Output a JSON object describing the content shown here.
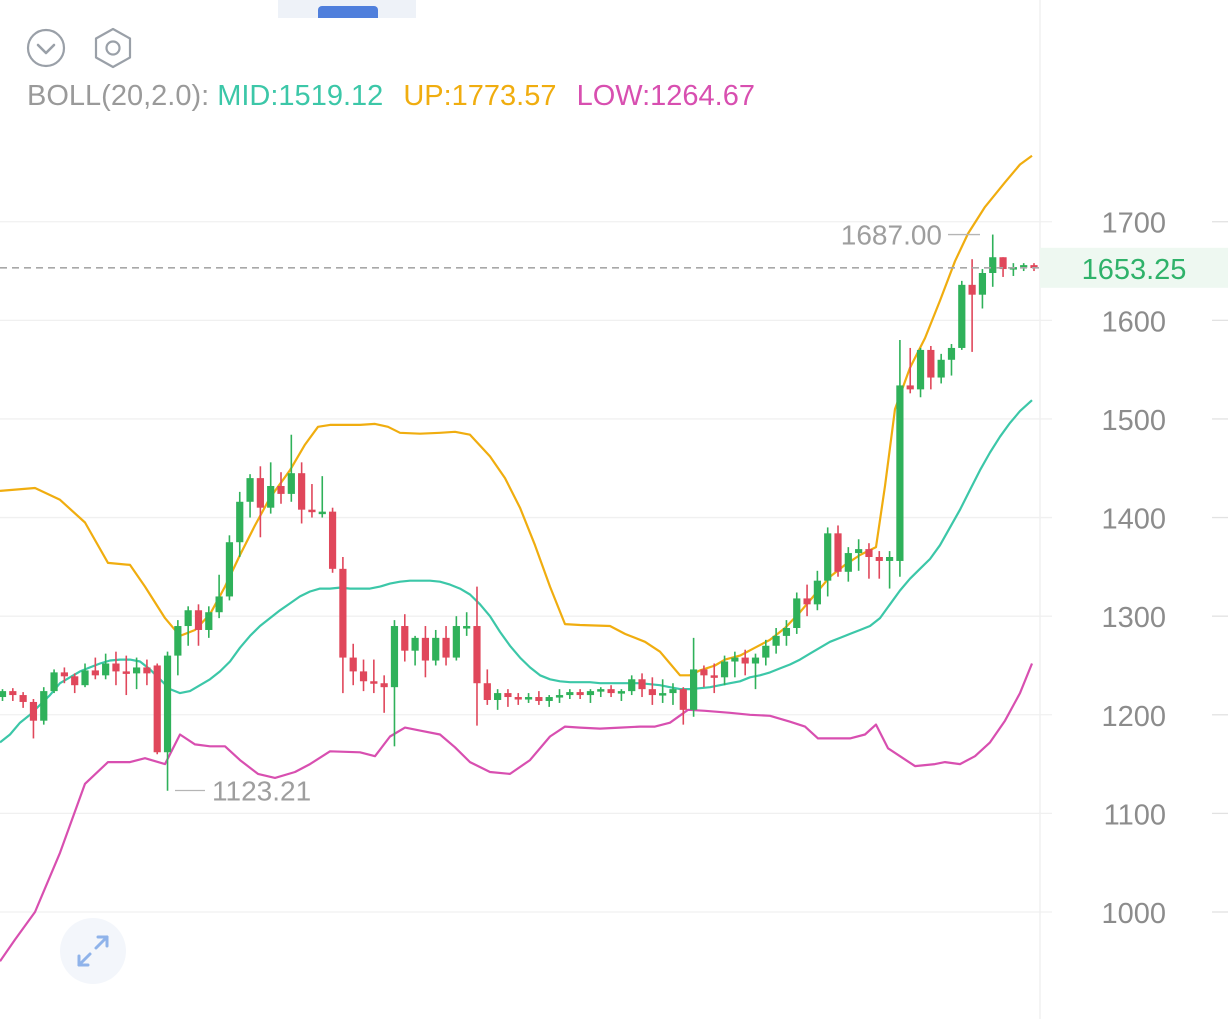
{
  "toolbar": {
    "collapse_icon": "chevron-down-circle-icon",
    "settings_icon": "hexagon-settings-icon"
  },
  "indicator": {
    "name": "BOLL(20,2.0):",
    "mid_label": "MID:1519.12",
    "up_label": "UP:1773.57",
    "low_label": "LOW:1264.67",
    "colors": {
      "name": "#9a9a9a",
      "mid": "#3cc7a8",
      "up": "#f0ad0f",
      "low": "#d84fb0"
    }
  },
  "chart_data": {
    "type": "candlestick",
    "y_axis": {
      "ticks": [
        1000,
        1100,
        1200,
        1300,
        1400,
        1500,
        1600,
        1700
      ],
      "range": [
        960,
        1745
      ],
      "grid": true,
      "position": "right"
    },
    "last_price": {
      "value": 1653.25,
      "label": "1653.25",
      "color": "#2fb26a"
    },
    "max_annotation": {
      "value": 1687.0,
      "label": "1687.00"
    },
    "min_annotation": {
      "value": 1123.21,
      "label": "1123.21"
    },
    "colors": {
      "up": "#2fb15a",
      "down": "#e0475b"
    },
    "candles": [
      [
        1218,
        1226,
        1214,
        1224
      ],
      [
        1224,
        1227,
        1214,
        1220
      ],
      [
        1220,
        1223,
        1207,
        1213
      ],
      [
        1213,
        1216,
        1176,
        1194
      ],
      [
        1194,
        1228,
        1190,
        1224
      ],
      [
        1224,
        1246,
        1222,
        1243
      ],
      [
        1243,
        1248,
        1232,
        1239
      ],
      [
        1239,
        1242,
        1222,
        1230
      ],
      [
        1230,
        1252,
        1228,
        1245
      ],
      [
        1245,
        1258,
        1236,
        1240
      ],
      [
        1240,
        1262,
        1236,
        1252
      ],
      [
        1252,
        1264,
        1230,
        1244
      ],
      [
        1244,
        1260,
        1220,
        1242
      ],
      [
        1242,
        1258,
        1226,
        1248
      ],
      [
        1248,
        1256,
        1230,
        1242
      ],
      [
        1250,
        1252,
        1160,
        1162
      ],
      [
        1162,
        1264,
        1123,
        1260
      ],
      [
        1260,
        1296,
        1240,
        1290
      ],
      [
        1290,
        1310,
        1270,
        1306
      ],
      [
        1306,
        1312,
        1270,
        1286
      ],
      [
        1286,
        1310,
        1278,
        1304
      ],
      [
        1304,
        1342,
        1298,
        1320
      ],
      [
        1320,
        1382,
        1316,
        1375
      ],
      [
        1375,
        1426,
        1360,
        1416
      ],
      [
        1416,
        1444,
        1400,
        1440
      ],
      [
        1440,
        1452,
        1380,
        1410
      ],
      [
        1410,
        1456,
        1404,
        1432
      ],
      [
        1432,
        1446,
        1414,
        1424
      ],
      [
        1424,
        1484,
        1416,
        1445
      ],
      [
        1445,
        1456,
        1394,
        1408
      ],
      [
        1408,
        1434,
        1400,
        1406
      ],
      [
        1406,
        1442,
        1400,
        1406
      ],
      [
        1406,
        1410,
        1344,
        1348
      ],
      [
        1348,
        1360,
        1222,
        1258
      ],
      [
        1258,
        1272,
        1230,
        1244
      ],
      [
        1244,
        1256,
        1224,
        1234
      ],
      [
        1234,
        1256,
        1222,
        1232
      ],
      [
        1232,
        1240,
        1202,
        1228
      ],
      [
        1228,
        1296,
        1168,
        1290
      ],
      [
        1290,
        1302,
        1254,
        1265
      ],
      [
        1265,
        1280,
        1250,
        1278
      ],
      [
        1278,
        1290,
        1238,
        1255
      ],
      [
        1255,
        1286,
        1250,
        1278
      ],
      [
        1278,
        1290,
        1250,
        1258
      ],
      [
        1258,
        1300,
        1255,
        1290
      ],
      [
        1290,
        1304,
        1280,
        1290
      ],
      [
        1290,
        1330,
        1189,
        1232
      ],
      [
        1232,
        1246,
        1210,
        1215
      ],
      [
        1215,
        1226,
        1205,
        1222
      ],
      [
        1222,
        1226,
        1208,
        1218
      ],
      [
        1218,
        1222,
        1210,
        1216
      ],
      [
        1216,
        1222,
        1212,
        1218
      ],
      [
        1218,
        1224,
        1210,
        1214
      ],
      [
        1214,
        1220,
        1208,
        1218
      ],
      [
        1218,
        1226,
        1212,
        1220
      ],
      [
        1220,
        1226,
        1216,
        1223
      ],
      [
        1223,
        1226,
        1216,
        1220
      ],
      [
        1220,
        1226,
        1212,
        1224
      ],
      [
        1224,
        1228,
        1218,
        1226
      ],
      [
        1226,
        1230,
        1218,
        1222
      ],
      [
        1222,
        1226,
        1214,
        1224
      ],
      [
        1224,
        1240,
        1220,
        1236
      ],
      [
        1236,
        1242,
        1218,
        1226
      ],
      [
        1226,
        1238,
        1210,
        1220
      ],
      [
        1220,
        1236,
        1212,
        1222
      ],
      [
        1222,
        1232,
        1210,
        1226
      ],
      [
        1226,
        1228,
        1190,
        1205
      ],
      [
        1205,
        1278,
        1198,
        1246
      ],
      [
        1246,
        1250,
        1228,
        1240
      ],
      [
        1240,
        1252,
        1222,
        1238
      ],
      [
        1238,
        1260,
        1230,
        1254
      ],
      [
        1254,
        1264,
        1238,
        1258
      ],
      [
        1258,
        1266,
        1240,
        1252
      ],
      [
        1252,
        1262,
        1226,
        1258
      ],
      [
        1258,
        1276,
        1250,
        1270
      ],
      [
        1270,
        1288,
        1262,
        1280
      ],
      [
        1280,
        1296,
        1270,
        1288
      ],
      [
        1288,
        1324,
        1282,
        1318
      ],
      [
        1318,
        1332,
        1300,
        1312
      ],
      [
        1312,
        1346,
        1306,
        1336
      ],
      [
        1336,
        1390,
        1320,
        1384
      ],
      [
        1384,
        1392,
        1340,
        1345
      ],
      [
        1345,
        1370,
        1335,
        1364
      ],
      [
        1364,
        1378,
        1346,
        1368
      ],
      [
        1368,
        1374,
        1338,
        1360
      ],
      [
        1360,
        1366,
        1338,
        1356
      ],
      [
        1356,
        1366,
        1328,
        1360
      ],
      [
        1356,
        1580,
        1340,
        1534
      ],
      [
        1534,
        1572,
        1526,
        1530
      ],
      [
        1530,
        1572,
        1522,
        1570
      ],
      [
        1570,
        1574,
        1530,
        1542
      ],
      [
        1542,
        1566,
        1536,
        1560
      ],
      [
        1560,
        1576,
        1544,
        1572
      ],
      [
        1572,
        1640,
        1570,
        1636
      ],
      [
        1636,
        1662,
        1568,
        1626
      ],
      [
        1626,
        1652,
        1612,
        1648
      ],
      [
        1648,
        1687,
        1634,
        1664
      ],
      [
        1664,
        1664,
        1644,
        1652
      ],
      [
        1652,
        1658,
        1645,
        1654
      ],
      [
        1654,
        1658,
        1650,
        1656
      ],
      [
        1656,
        1658,
        1650,
        1653
      ]
    ],
    "boll_mid": [
      [
        0,
        1172
      ],
      [
        10,
        1180
      ],
      [
        20,
        1192
      ],
      [
        30,
        1200
      ],
      [
        40,
        1210
      ],
      [
        50,
        1220
      ],
      [
        60,
        1232
      ],
      [
        70,
        1238
      ],
      [
        80,
        1244
      ],
      [
        90,
        1248
      ],
      [
        100,
        1252
      ],
      [
        110,
        1255
      ],
      [
        120,
        1256
      ],
      [
        130,
        1256
      ],
      [
        140,
        1254
      ],
      [
        150,
        1246
      ],
      [
        160,
        1236
      ],
      [
        170,
        1226
      ],
      [
        180,
        1222
      ],
      [
        190,
        1224
      ],
      [
        200,
        1230
      ],
      [
        210,
        1236
      ],
      [
        220,
        1244
      ],
      [
        230,
        1254
      ],
      [
        240,
        1268
      ],
      [
        250,
        1280
      ],
      [
        260,
        1290
      ],
      [
        270,
        1298
      ],
      [
        280,
        1306
      ],
      [
        290,
        1313
      ],
      [
        300,
        1320
      ],
      [
        310,
        1325
      ],
      [
        320,
        1328
      ],
      [
        330,
        1328
      ],
      [
        340,
        1329
      ],
      [
        350,
        1328
      ],
      [
        360,
        1328
      ],
      [
        370,
        1328
      ],
      [
        380,
        1330
      ],
      [
        390,
        1333
      ],
      [
        400,
        1335
      ],
      [
        410,
        1336
      ],
      [
        420,
        1336
      ],
      [
        430,
        1336
      ],
      [
        440,
        1335
      ],
      [
        450,
        1332
      ],
      [
        460,
        1328
      ],
      [
        470,
        1322
      ],
      [
        480,
        1312
      ],
      [
        490,
        1300
      ],
      [
        500,
        1284
      ],
      [
        510,
        1270
      ],
      [
        520,
        1258
      ],
      [
        530,
        1248
      ],
      [
        540,
        1240
      ],
      [
        550,
        1236
      ],
      [
        560,
        1234
      ],
      [
        570,
        1233
      ],
      [
        580,
        1233
      ],
      [
        590,
        1233
      ],
      [
        600,
        1232
      ],
      [
        610,
        1232
      ],
      [
        620,
        1232
      ],
      [
        630,
        1232
      ],
      [
        640,
        1232
      ],
      [
        650,
        1231
      ],
      [
        660,
        1230
      ],
      [
        670,
        1228
      ],
      [
        680,
        1226
      ],
      [
        690,
        1226
      ],
      [
        700,
        1227
      ],
      [
        710,
        1228
      ],
      [
        720,
        1230
      ],
      [
        730,
        1232
      ],
      [
        740,
        1234
      ],
      [
        750,
        1238
      ],
      [
        760,
        1240
      ],
      [
        770,
        1243
      ],
      [
        780,
        1247
      ],
      [
        790,
        1251
      ],
      [
        800,
        1256
      ],
      [
        810,
        1262
      ],
      [
        820,
        1268
      ],
      [
        830,
        1274
      ],
      [
        840,
        1278
      ],
      [
        850,
        1282
      ],
      [
        860,
        1286
      ],
      [
        870,
        1290
      ],
      [
        880,
        1298
      ],
      [
        890,
        1312
      ],
      [
        900,
        1326
      ],
      [
        910,
        1338
      ],
      [
        920,
        1348
      ],
      [
        930,
        1358
      ],
      [
        940,
        1372
      ],
      [
        950,
        1390
      ],
      [
        960,
        1408
      ],
      [
        970,
        1428
      ],
      [
        980,
        1448
      ],
      [
        990,
        1466
      ],
      [
        1000,
        1482
      ],
      [
        1010,
        1496
      ],
      [
        1020,
        1508
      ],
      [
        1032,
        1519
      ]
    ],
    "boll_up": [
      [
        0,
        1427
      ],
      [
        35,
        1430
      ],
      [
        60,
        1418
      ],
      [
        85,
        1395
      ],
      [
        108,
        1354
      ],
      [
        130,
        1352
      ],
      [
        145,
        1330
      ],
      [
        165,
        1298
      ],
      [
        180,
        1280
      ],
      [
        195,
        1286
      ],
      [
        210,
        1302
      ],
      [
        225,
        1330
      ],
      [
        240,
        1362
      ],
      [
        255,
        1392
      ],
      [
        270,
        1420
      ],
      [
        290,
        1448
      ],
      [
        305,
        1474
      ],
      [
        318,
        1492
      ],
      [
        330,
        1494
      ],
      [
        360,
        1494
      ],
      [
        375,
        1495
      ],
      [
        388,
        1492
      ],
      [
        400,
        1486
      ],
      [
        420,
        1485
      ],
      [
        440,
        1486
      ],
      [
        455,
        1487
      ],
      [
        470,
        1484
      ],
      [
        490,
        1462
      ],
      [
        505,
        1440
      ],
      [
        520,
        1410
      ],
      [
        535,
        1372
      ],
      [
        550,
        1330
      ],
      [
        565,
        1292
      ],
      [
        580,
        1291
      ],
      [
        610,
        1290
      ],
      [
        625,
        1282
      ],
      [
        645,
        1274
      ],
      [
        660,
        1264
      ],
      [
        670,
        1252
      ],
      [
        680,
        1240
      ],
      [
        690,
        1240
      ],
      [
        700,
        1245
      ],
      [
        715,
        1250
      ],
      [
        725,
        1256
      ],
      [
        740,
        1260
      ],
      [
        755,
        1268
      ],
      [
        770,
        1276
      ],
      [
        785,
        1288
      ],
      [
        800,
        1304
      ],
      [
        815,
        1322
      ],
      [
        830,
        1340
      ],
      [
        845,
        1352
      ],
      [
        860,
        1362
      ],
      [
        876,
        1370
      ],
      [
        885,
        1432
      ],
      [
        895,
        1510
      ],
      [
        910,
        1552
      ],
      [
        925,
        1582
      ],
      [
        940,
        1620
      ],
      [
        955,
        1660
      ],
      [
        968,
        1688
      ],
      [
        985,
        1715
      ],
      [
        1005,
        1740
      ],
      [
        1020,
        1758
      ],
      [
        1032,
        1767
      ]
    ],
    "boll_low": [
      [
        0,
        950
      ],
      [
        15,
        972
      ],
      [
        35,
        1000
      ],
      [
        60,
        1060
      ],
      [
        85,
        1130
      ],
      [
        108,
        1152
      ],
      [
        130,
        1152
      ],
      [
        145,
        1156
      ],
      [
        165,
        1150
      ],
      [
        180,
        1180
      ],
      [
        195,
        1170
      ],
      [
        210,
        1168
      ],
      [
        225,
        1168
      ],
      [
        240,
        1154
      ],
      [
        258,
        1140
      ],
      [
        275,
        1136
      ],
      [
        295,
        1142
      ],
      [
        310,
        1150
      ],
      [
        330,
        1163
      ],
      [
        360,
        1162
      ],
      [
        375,
        1158
      ],
      [
        390,
        1178
      ],
      [
        405,
        1187
      ],
      [
        420,
        1184
      ],
      [
        440,
        1180
      ],
      [
        455,
        1167
      ],
      [
        470,
        1152
      ],
      [
        490,
        1142
      ],
      [
        510,
        1140
      ],
      [
        530,
        1154
      ],
      [
        550,
        1178
      ],
      [
        565,
        1188
      ],
      [
        580,
        1187
      ],
      [
        600,
        1186
      ],
      [
        620,
        1187
      ],
      [
        640,
        1188
      ],
      [
        655,
        1188
      ],
      [
        670,
        1192
      ],
      [
        688,
        1205
      ],
      [
        705,
        1204
      ],
      [
        730,
        1202
      ],
      [
        750,
        1200
      ],
      [
        770,
        1199
      ],
      [
        790,
        1193
      ],
      [
        805,
        1188
      ],
      [
        818,
        1176
      ],
      [
        835,
        1176
      ],
      [
        850,
        1176
      ],
      [
        865,
        1180
      ],
      [
        876,
        1190
      ],
      [
        888,
        1166
      ],
      [
        900,
        1158
      ],
      [
        915,
        1148
      ],
      [
        935,
        1150
      ],
      [
        945,
        1152
      ],
      [
        960,
        1150
      ],
      [
        975,
        1158
      ],
      [
        990,
        1172
      ],
      [
        1005,
        1194
      ],
      [
        1020,
        1222
      ],
      [
        1032,
        1252
      ]
    ]
  }
}
